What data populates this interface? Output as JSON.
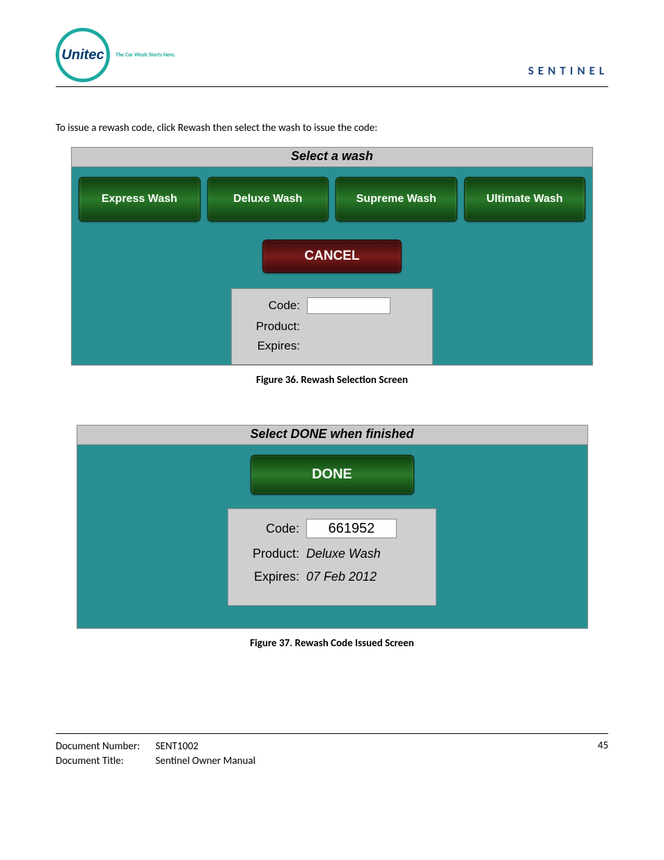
{
  "header": {
    "logo_text": "Unitec",
    "tagline": "The Car Wash Starts Here.",
    "product": "SENTINEL"
  },
  "intro": "To issue a rewash code, click Rewash then select the wash to issue the code:",
  "screen1": {
    "title": "Select a wash",
    "buttons": [
      "Express Wash",
      "Deluxe Wash",
      "Supreme Wash",
      "Ultimate Wash"
    ],
    "cancel": "CANCEL",
    "info": {
      "code_label": "Code:",
      "code_value": "",
      "product_label": "Product:",
      "product_value": "",
      "expires_label": "Expires:",
      "expires_value": ""
    },
    "caption": "Figure 36. Rewash Selection Screen"
  },
  "screen2": {
    "title": "Select DONE when finished",
    "done": "DONE",
    "info": {
      "code_label": "Code:",
      "code_value": "661952",
      "product_label": "Product:",
      "product_value": "Deluxe Wash",
      "expires_label": "Expires:",
      "expires_value": "07 Feb 2012"
    },
    "caption": "Figure 37. Rewash Code Issued Screen"
  },
  "footer": {
    "docnum_label": "Document Number:",
    "docnum_value": "SENT1002",
    "doctitle_label": "Document Title:",
    "doctitle_value": "Sentinel Owner Manual",
    "page": "45"
  },
  "colors": {
    "teal": "#2a8f93",
    "green_dark": "#0d3c0d",
    "green_mid": "#2a7a2a",
    "red_dark": "#3a0a0a",
    "red_mid": "#7a1a1a",
    "gray_panel": "#cfcfcf",
    "gray_title": "#c9c9c9",
    "unitec_ring": "#1ca9a0",
    "unitec_text": "#003a70",
    "sentinel_text": "#1f497d"
  }
}
